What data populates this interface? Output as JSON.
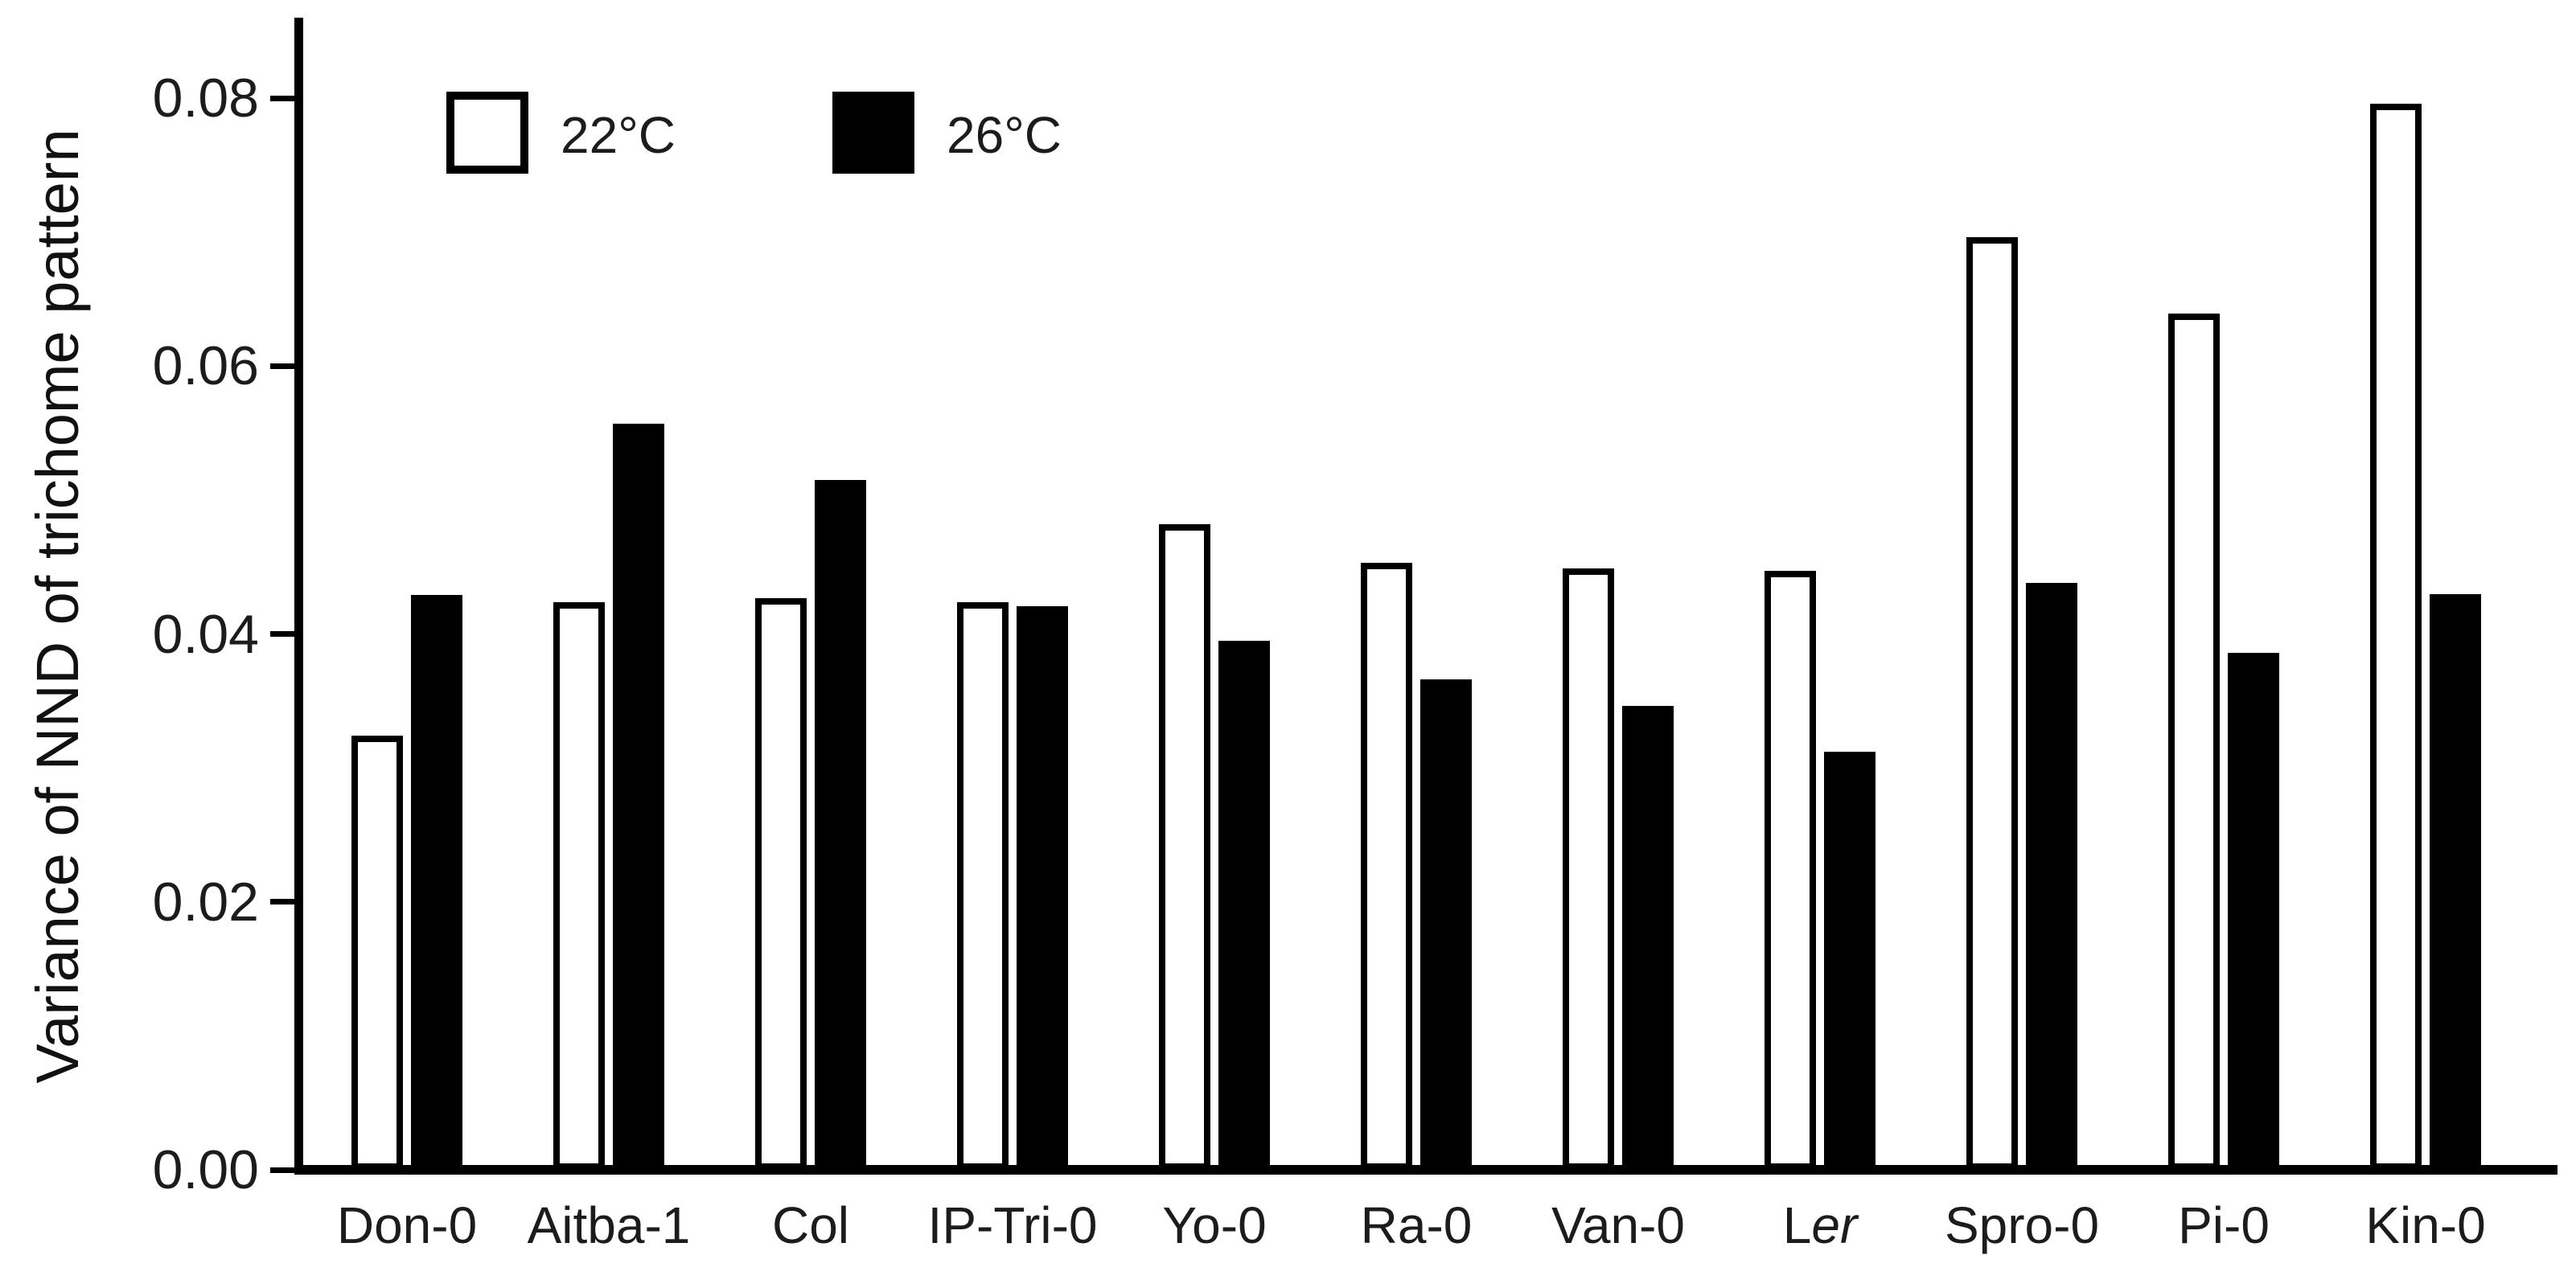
{
  "figure": {
    "background": "#ffffff",
    "ink": "#000000",
    "text_color": "#1c1c1c"
  },
  "chart_data": {
    "type": "bar",
    "title": "",
    "ylabel": "Variance of NND of trichome pattern",
    "xlabel": "",
    "categories": [
      "Don-0",
      "Aitba-1",
      "Col",
      "IP-Tri-0",
      "Yo-0",
      "Ra-0",
      "Van-0",
      "Ler",
      "Spro-0",
      "Pi-0",
      "Kin-0"
    ],
    "categories_rich": [
      {
        "text": "Don-0"
      },
      {
        "text": "Aitba-1"
      },
      {
        "text": "Col"
      },
      {
        "text": "IP-Tri-0"
      },
      {
        "text": "Yo-0"
      },
      {
        "text": "Ra-0"
      },
      {
        "text": "Van-0"
      },
      {
        "text": "L",
        "italic": "er"
      },
      {
        "text": "Spro-0"
      },
      {
        "text": "Pi-0"
      },
      {
        "text": "Kin-0"
      }
    ],
    "series": [
      {
        "name": "22°C",
        "key": "22c",
        "style": "open",
        "fill": "#ffffff",
        "outline": "#000000",
        "values": [
          0.0324,
          0.0424,
          0.0427,
          0.0424,
          0.0482,
          0.0453,
          0.0449,
          0.0447,
          0.0696,
          0.0639,
          0.0796
        ]
      },
      {
        "name": "26°C",
        "key": "26c",
        "style": "solid",
        "fill": "#000000",
        "outline": "#000000",
        "values": [
          0.0429,
          0.0557,
          0.0515,
          0.0421,
          0.0395,
          0.0366,
          0.0346,
          0.0312,
          0.0438,
          0.0386,
          0.043
        ]
      }
    ],
    "ylim": [
      0,
      0.085
    ],
    "yticks": [
      {
        "label": "0.00",
        "value": 0.0
      },
      {
        "label": "0.02",
        "value": 0.02
      },
      {
        "label": "0.04",
        "value": 0.04
      },
      {
        "label": "0.06",
        "value": 0.06
      },
      {
        "label": "0.08",
        "value": 0.08
      }
    ],
    "grid": false,
    "legend_position": "top-left-inside"
  }
}
